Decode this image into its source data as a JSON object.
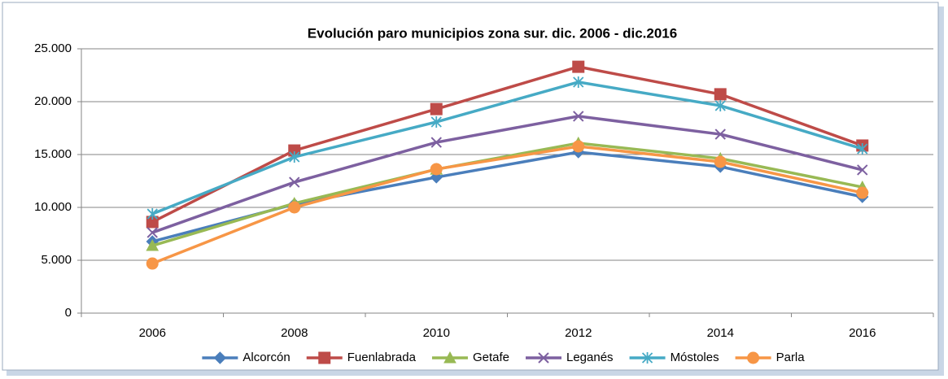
{
  "chart_data": {
    "type": "line",
    "title": "Evolución paro municipios zona sur. dic. 2006 - dic.2016",
    "categories": [
      "2006",
      "2008",
      "2010",
      "2012",
      "2014",
      "2016"
    ],
    "series": [
      {
        "name": "Alcorcón",
        "color": "#4a7ebb",
        "values": [
          6770,
          10300,
          12850,
          15230,
          13850,
          11000
        ]
      },
      {
        "name": "Fuenlabrada",
        "color": "#be4b48",
        "values": [
          8620,
          15380,
          19300,
          23300,
          20700,
          15850
        ]
      },
      {
        "name": "Getafe",
        "color": "#98b954",
        "values": [
          6380,
          10380,
          13600,
          16080,
          14620,
          11920
        ]
      },
      {
        "name": "Leganés",
        "color": "#7d60a0",
        "values": [
          7620,
          12380,
          16150,
          18620,
          16920,
          13540
        ]
      },
      {
        "name": "Móstoles",
        "color": "#46aac5",
        "values": [
          9380,
          14770,
          18080,
          21850,
          19620,
          15540
        ]
      },
      {
        "name": "Parla",
        "color": "#f79646",
        "values": [
          4690,
          10000,
          13620,
          15770,
          14310,
          11380
        ]
      }
    ],
    "ylim": [
      0,
      25000
    ],
    "yticks": [
      0,
      {
        "value": 5000,
        "label": "5.000"
      },
      {
        "value": 10000,
        "label": "10.000"
      },
      {
        "value": 15000,
        "label": "15.000"
      },
      {
        "value": 20000,
        "label": "20.000"
      },
      {
        "value": 25000,
        "label": "25.000"
      }
    ],
    "grid": true,
    "legend": "bottom"
  }
}
